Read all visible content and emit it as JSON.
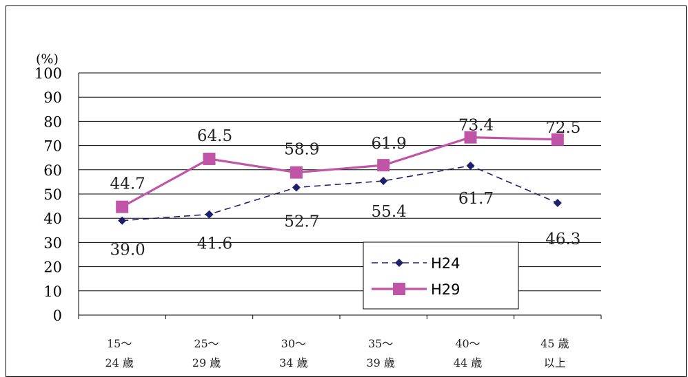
{
  "chart_data": {
    "type": "line",
    "title": "",
    "ylabel": "(%)",
    "xlabel": "",
    "ylim": [
      0,
      100
    ],
    "yticks": [
      "0",
      "10",
      "20",
      "30",
      "40",
      "50",
      "60",
      "70",
      "80",
      "90",
      "100"
    ],
    "categories": [
      [
        "15～",
        "24 歳"
      ],
      [
        "25～",
        "29 歳"
      ],
      [
        "30～",
        "34 歳"
      ],
      [
        "35～",
        "39 歳"
      ],
      [
        "40～",
        "44 歳"
      ],
      [
        "45 歳",
        "以上"
      ]
    ],
    "grid": true,
    "legend_position": "bottom-right",
    "series": [
      {
        "name": "H24",
        "values": [
          39.0,
          41.6,
          52.7,
          55.4,
          61.7,
          46.3
        ],
        "labels": [
          "39.0",
          "41.6",
          "52.7",
          "55.4",
          "61.7",
          "46.3"
        ],
        "color": "#1f1f6e",
        "style": "dashed",
        "marker": "diamond"
      },
      {
        "name": "H29",
        "values": [
          44.7,
          64.5,
          58.9,
          61.9,
          73.4,
          72.5
        ],
        "labels": [
          "44.7",
          "64.5",
          "58.9",
          "61.9",
          "73.4",
          "72.5"
        ],
        "color": "#c055a8",
        "style": "solid",
        "marker": "square"
      }
    ]
  }
}
